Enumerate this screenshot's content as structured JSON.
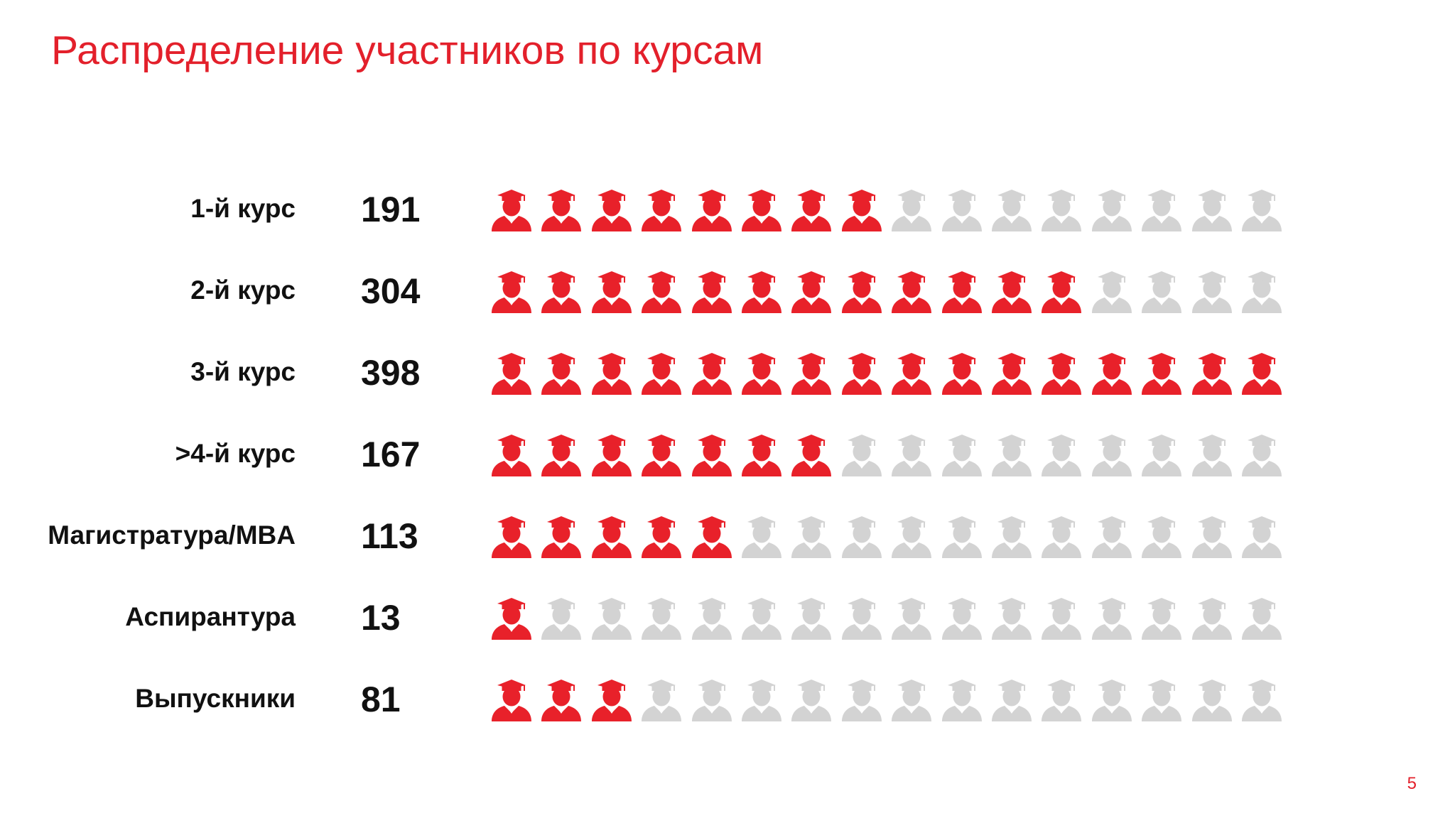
{
  "title": "Распределение участников по курсам",
  "page_number": "5",
  "colors": {
    "accent": "#e3202b",
    "filled_icon": "#e8212a",
    "empty_icon": "#d3d3d3",
    "text": "#111111"
  },
  "icon": "graduate-person-icon",
  "chart_data": {
    "type": "pictogram",
    "title": "Распределение участников по курсам",
    "icons_per_row": 16,
    "units_per_icon": 25,
    "categories": [
      "1-й курс",
      "2-й курс",
      "3-й курс",
      ">4-й курс",
      "Магистратура/MBA",
      "Аспирантура",
      "Выпускники"
    ],
    "values": [
      191,
      304,
      398,
      167,
      113,
      13,
      81
    ],
    "rows": [
      {
        "label": "1-й курс",
        "value": "191",
        "filled": 8
      },
      {
        "label": "2-й курс",
        "value": "304",
        "filled": 12
      },
      {
        "label": "3-й курс",
        "value": "398",
        "filled": 16
      },
      {
        "label": ">4-й курс",
        "value": "167",
        "filled": 7
      },
      {
        "label": "Магистратура/MBA",
        "value": "113",
        "filled": 5
      },
      {
        "label": "Аспирантура",
        "value": "13",
        "filled": 1
      },
      {
        "label": "Выпускники",
        "value": "81",
        "filled": 3
      }
    ]
  }
}
